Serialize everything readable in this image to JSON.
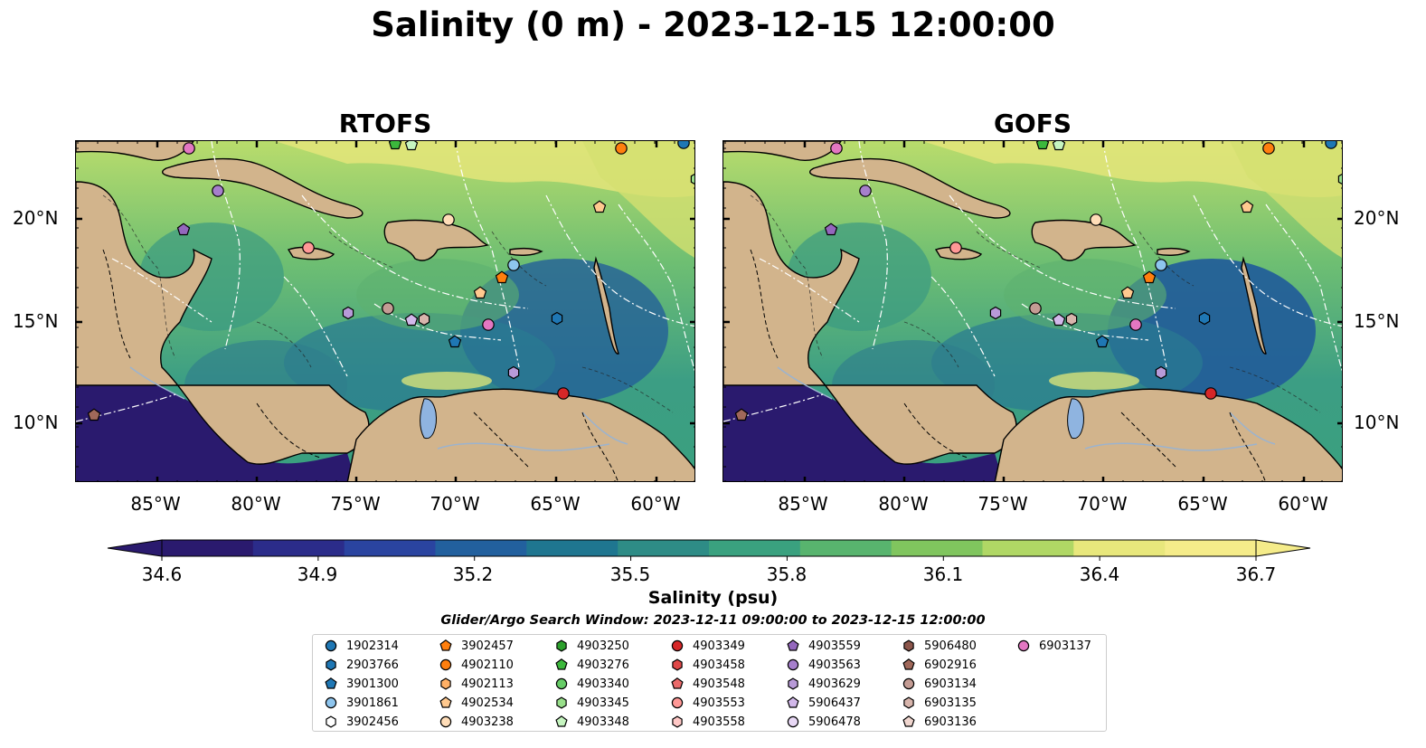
{
  "title": "Salinity (0 m) - 2023-12-15 12:00:00",
  "panels": [
    {
      "title": "RTOFS"
    },
    {
      "title": "GOFS"
    }
  ],
  "lat_ticks": [
    "20°N",
    "15°N",
    "10°N"
  ],
  "lon_ticks": [
    "85°W",
    "80°W",
    "75°W",
    "70°W",
    "65°W",
    "60°W"
  ],
  "colorbar": {
    "min": 34.6,
    "max": 36.7,
    "tick_labels": [
      "34.6",
      "34.9",
      "35.2",
      "35.5",
      "35.8",
      "36.1",
      "36.4",
      "36.7"
    ],
    "label": "Salinity (psu)",
    "colors": [
      "#2a1a6e",
      "#2b2c8a",
      "#2a44a0",
      "#22609e",
      "#1f7690",
      "#2e8c86",
      "#3aa17f",
      "#58b46e",
      "#80c55e",
      "#b0d765",
      "#e8e77c",
      "#f5ec8a"
    ]
  },
  "search_window": "Glider/Argo Search Window: 2023-12-11 09:00:00 to 2023-12-15 12:00:00",
  "legend": [
    {
      "label": "1902314",
      "color": "#1f77b4",
      "marker": "circle"
    },
    {
      "label": "2903766",
      "color": "#1f77b4",
      "marker": "hexagon"
    },
    {
      "label": "3901300",
      "color": "#1f77b4",
      "marker": "pentagon"
    },
    {
      "label": "3901861",
      "color": "#8ec5ee",
      "marker": "circle"
    },
    {
      "label": "3902456",
      "color": "#ffffff",
      "marker": "hexagon"
    },
    {
      "label": "3902457",
      "color": "#ff7f0e",
      "marker": "pentagon"
    },
    {
      "label": "4902110",
      "color": "#ff7f0e",
      "marker": "circle"
    },
    {
      "label": "4902113",
      "color": "#ffb066",
      "marker": "hexagon"
    },
    {
      "label": "4902534",
      "color": "#ffc98f",
      "marker": "pentagon"
    },
    {
      "label": "4903238",
      "color": "#ffddb8",
      "marker": "circle"
    },
    {
      "label": "4903250",
      "color": "#2ca02c",
      "marker": "hexagon"
    },
    {
      "label": "4903276",
      "color": "#3cb83c",
      "marker": "pentagon"
    },
    {
      "label": "4903340",
      "color": "#66cc66",
      "marker": "circle"
    },
    {
      "label": "4903345",
      "color": "#98df8a",
      "marker": "hexagon"
    },
    {
      "label": "4903348",
      "color": "#c6f5c0",
      "marker": "pentagon"
    },
    {
      "label": "4903349",
      "color": "#d62728",
      "marker": "circle"
    },
    {
      "label": "4903458",
      "color": "#e04848",
      "marker": "hexagon"
    },
    {
      "label": "4903548",
      "color": "#ea6a6a",
      "marker": "pentagon"
    },
    {
      "label": "4903553",
      "color": "#ff9896",
      "marker": "circle"
    },
    {
      "label": "4903558",
      "color": "#ffc8c6",
      "marker": "hexagon"
    },
    {
      "label": "4903559",
      "color": "#9467bd",
      "marker": "pentagon"
    },
    {
      "label": "4903563",
      "color": "#a67fcc",
      "marker": "circle"
    },
    {
      "label": "4903629",
      "color": "#b89ad8",
      "marker": "hexagon"
    },
    {
      "label": "5906437",
      "color": "#d2b8ea",
      "marker": "pentagon"
    },
    {
      "label": "5906478",
      "color": "#e8d8f5",
      "marker": "circle"
    },
    {
      "label": "5906480",
      "color": "#8c564b",
      "marker": "hexagon"
    },
    {
      "label": "6902916",
      "color": "#a0685a",
      "marker": "pentagon"
    },
    {
      "label": "6903134",
      "color": "#c49c94",
      "marker": "circle"
    },
    {
      "label": "6903135",
      "color": "#d8b5ac",
      "marker": "hexagon"
    },
    {
      "label": "6903136",
      "color": "#f0d6cf",
      "marker": "pentagon"
    },
    {
      "label": "6903137",
      "color": "#e377c2",
      "marker": "circle"
    }
  ]
}
